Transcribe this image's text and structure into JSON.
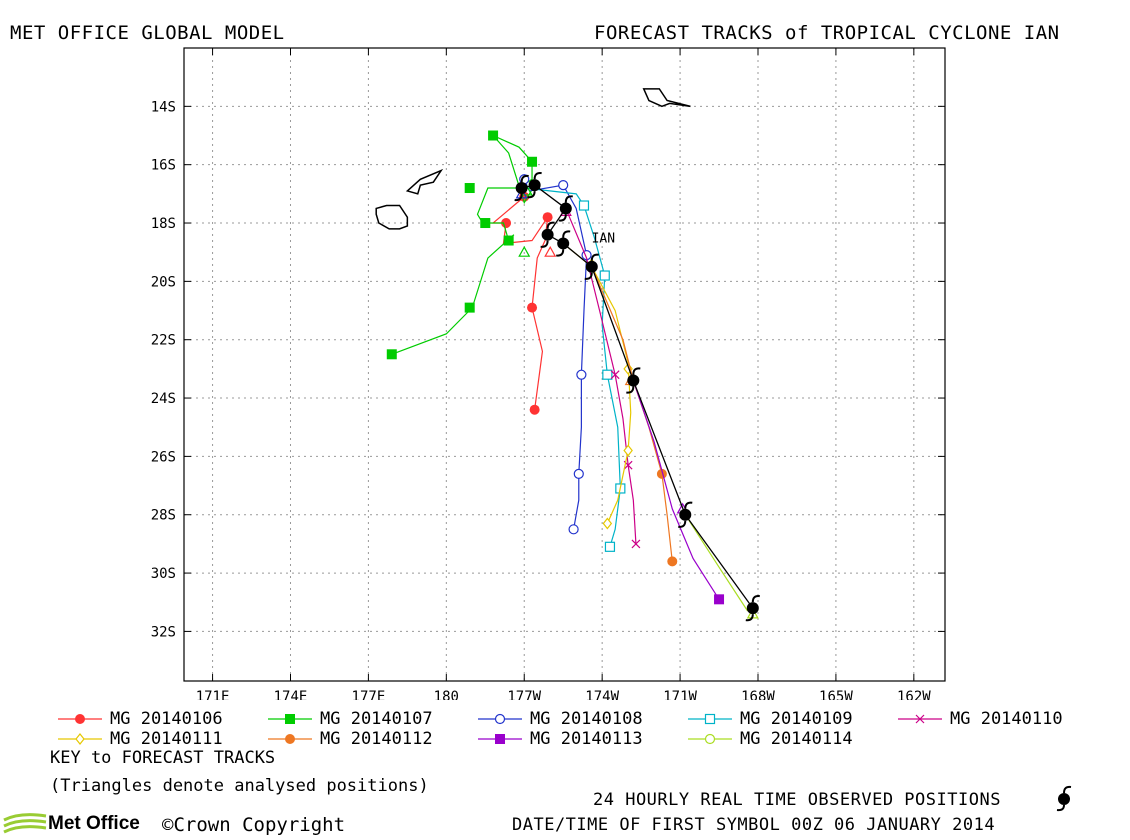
{
  "header": {
    "left_title": "MET OFFICE GLOBAL MODEL",
    "right_title": "FORECAST TRACKS of TROPICAL CYCLONE IAN"
  },
  "legend": {
    "items": [
      {
        "label": "MG 20140106",
        "color": "#ff3333",
        "marker": "filled-circle"
      },
      {
        "label": "MG 20140107",
        "color": "#00cc00",
        "marker": "filled-square"
      },
      {
        "label": "MG 20140108",
        "color": "#2233cc",
        "marker": "open-circle"
      },
      {
        "label": "MG 20140109",
        "color": "#00b3c8",
        "marker": "open-square"
      },
      {
        "label": "MG 20140110",
        "color": "#cc0088",
        "marker": "cross"
      },
      {
        "label": "MG 20140111",
        "color": "#e6c800",
        "marker": "open-diamond"
      },
      {
        "label": "MG 20140112",
        "color": "#ee7722",
        "marker": "filled-circle"
      },
      {
        "label": "MG 20140113",
        "color": "#9900cc",
        "marker": "filled-square"
      },
      {
        "label": "MG 20140114",
        "color": "#aadd22",
        "marker": "open-circle"
      }
    ],
    "key_title": "KEY to FORECAST TRACKS",
    "key_note": "(Triangles denote analysed positions)"
  },
  "footer": {
    "observed_label": "24 HOURLY REAL TIME OBSERVED POSITIONS",
    "datetime_label": "DATE/TIME OF FIRST SYMBOL 00Z 06 JANUARY 2014",
    "logo_text": "Met Office",
    "copyright": "©Crown Copyright"
  },
  "chart_data": {
    "type": "scatter",
    "title": "FORECAST TRACKS of TROPICAL CYCLONE IAN",
    "storm_label": "IAN",
    "x_ticks": [
      {
        "lon": 171,
        "label": "171E"
      },
      {
        "lon": 174,
        "label": "174E"
      },
      {
        "lon": 177,
        "label": "177E"
      },
      {
        "lon": 180,
        "label": "180"
      },
      {
        "lon": 183,
        "label": "177W"
      },
      {
        "lon": 186,
        "label": "174W"
      },
      {
        "lon": 189,
        "label": "171W"
      },
      {
        "lon": 192,
        "label": "168W"
      },
      {
        "lon": 195,
        "label": "165W"
      },
      {
        "lon": 198,
        "label": "162W"
      }
    ],
    "y_ticks": [
      {
        "lat": -14,
        "label": "14S"
      },
      {
        "lat": -16,
        "label": "16S"
      },
      {
        "lat": -18,
        "label": "18S"
      },
      {
        "lat": -20,
        "label": "20S"
      },
      {
        "lat": -22,
        "label": "22S"
      },
      {
        "lat": -24,
        "label": "24S"
      },
      {
        "lat": -26,
        "label": "26S"
      },
      {
        "lat": -28,
        "label": "28S"
      },
      {
        "lat": -30,
        "label": "30S"
      },
      {
        "lat": -32,
        "label": "32S"
      }
    ],
    "xlim": [
      169.9,
      199.2
    ],
    "ylim": [
      -33.7,
      -12.0
    ],
    "grid": true,
    "observed_track": [
      [
        182.9,
        -16.8
      ],
      [
        183.4,
        -16.7
      ],
      [
        184.6,
        -17.5
      ],
      [
        183.9,
        -18.4
      ],
      [
        184.5,
        -18.7
      ],
      [
        185.6,
        -19.5
      ],
      [
        187.2,
        -23.4
      ],
      [
        189.2,
        -28.0
      ],
      [
        191.8,
        -31.2
      ]
    ],
    "series": [
      {
        "name": "MG 20140106",
        "color": "#ff3333",
        "marker": "filled-circle",
        "track": [
          [
            182.9,
            -16.8
          ],
          [
            183.0,
            -17.1
          ],
          [
            182.2,
            -17.7
          ],
          [
            181.8,
            -18.0
          ],
          [
            182.3,
            -18.0
          ],
          [
            182.2,
            -18.7
          ],
          [
            183.3,
            -18.6
          ],
          [
            183.9,
            -17.8
          ],
          [
            183.8,
            -18.6
          ],
          [
            183.5,
            -19.2
          ],
          [
            183.3,
            -20.9
          ],
          [
            183.7,
            -22.4
          ],
          [
            183.4,
            -24.4
          ]
        ],
        "symbols": [
          [
            183.0,
            -17.1
          ],
          [
            182.3,
            -18.0
          ],
          [
            183.9,
            -17.8
          ],
          [
            183.3,
            -20.9
          ],
          [
            183.4,
            -24.4
          ]
        ]
      },
      {
        "name": "MG 20140107",
        "color": "#00cc00",
        "marker": "filled-square",
        "track": [
          [
            183.4,
            -16.7
          ],
          [
            183.0,
            -17.3
          ],
          [
            182.4,
            -15.6
          ],
          [
            181.8,
            -15.0
          ],
          [
            182.8,
            -15.4
          ],
          [
            183.3,
            -15.9
          ],
          [
            183.3,
            -16.5
          ],
          [
            182.8,
            -16.8
          ],
          [
            181.6,
            -16.8
          ],
          [
            181.2,
            -17.7
          ],
          [
            181.4,
            -18.0
          ],
          [
            182.2,
            -18.0
          ],
          [
            182.4,
            -18.6
          ],
          [
            182.6,
            -18.4
          ],
          [
            181.6,
            -19.2
          ],
          [
            181.0,
            -20.9
          ],
          [
            180.0,
            -21.8
          ],
          [
            177.9,
            -22.5
          ]
        ],
        "symbols": [
          [
            181.8,
            -15.0
          ],
          [
            183.3,
            -15.9
          ],
          [
            180.9,
            -16.8
          ],
          [
            181.5,
            -18.0
          ],
          [
            182.4,
            -18.6
          ],
          [
            180.9,
            -20.9
          ],
          [
            177.9,
            -22.5
          ]
        ]
      },
      {
        "name": "MG 20140108",
        "color": "#2233cc",
        "marker": "open-circle",
        "track": [
          [
            183.0,
            -16.5
          ],
          [
            183.2,
            -16.9
          ],
          [
            184.5,
            -16.7
          ],
          [
            185.0,
            -17.5
          ],
          [
            185.4,
            -19.1
          ],
          [
            185.3,
            -21.0
          ],
          [
            185.2,
            -23.2
          ],
          [
            185.2,
            -25.0
          ],
          [
            185.1,
            -26.6
          ],
          [
            185.1,
            -27.5
          ],
          [
            184.9,
            -28.5
          ]
        ],
        "symbols": [
          [
            183.0,
            -16.5
          ],
          [
            184.5,
            -16.7
          ],
          [
            185.4,
            -19.1
          ],
          [
            185.2,
            -23.2
          ],
          [
            185.1,
            -26.6
          ],
          [
            184.9,
            -28.5
          ]
        ]
      },
      {
        "name": "MG 20140109",
        "color": "#00b3c8",
        "marker": "open-square",
        "track": [
          [
            183.0,
            -16.8
          ],
          [
            185.0,
            -17.0
          ],
          [
            185.3,
            -17.4
          ],
          [
            185.7,
            -18.5
          ],
          [
            186.1,
            -19.8
          ],
          [
            186.0,
            -21.5
          ],
          [
            186.2,
            -23.2
          ],
          [
            186.6,
            -25.0
          ],
          [
            186.7,
            -27.1
          ],
          [
            186.5,
            -28.5
          ],
          [
            186.3,
            -29.1
          ]
        ],
        "symbols": [
          [
            185.3,
            -17.4
          ],
          [
            186.1,
            -19.8
          ],
          [
            186.2,
            -23.2
          ],
          [
            186.7,
            -27.1
          ],
          [
            186.3,
            -29.1
          ]
        ]
      },
      {
        "name": "MG 20140110",
        "color": "#cc0088",
        "marker": "cross",
        "track": [
          [
            184.6,
            -17.5
          ],
          [
            185.4,
            -19.2
          ],
          [
            185.9,
            -21.0
          ],
          [
            186.5,
            -23.2
          ],
          [
            186.8,
            -24.7
          ],
          [
            187.0,
            -26.3
          ],
          [
            187.2,
            -27.5
          ],
          [
            187.3,
            -29.0
          ]
        ],
        "symbols": [
          [
            186.5,
            -23.2
          ],
          [
            187.0,
            -26.3
          ],
          [
            187.3,
            -29.0
          ]
        ]
      },
      {
        "name": "MG 20140111",
        "color": "#e6c800",
        "marker": "open-diamond",
        "track": [
          [
            184.5,
            -18.7
          ],
          [
            185.6,
            -19.5
          ],
          [
            186.5,
            -21.0
          ],
          [
            187.0,
            -22.8
          ],
          [
            187.1,
            -24.5
          ],
          [
            187.0,
            -25.8
          ],
          [
            186.6,
            -27.5
          ],
          [
            186.2,
            -28.3
          ]
        ],
        "symbols": [
          [
            187.0,
            -23.0
          ],
          [
            187.0,
            -25.8
          ],
          [
            186.2,
            -28.3
          ]
        ]
      },
      {
        "name": "MG 20140112",
        "color": "#ee7722",
        "marker": "filled-circle",
        "track": [
          [
            185.6,
            -19.5
          ],
          [
            186.8,
            -22.0
          ],
          [
            187.2,
            -23.4
          ],
          [
            187.8,
            -25.0
          ],
          [
            188.3,
            -26.6
          ],
          [
            188.5,
            -28.0
          ],
          [
            188.7,
            -29.6
          ]
        ],
        "symbols": [
          [
            188.3,
            -26.6
          ],
          [
            188.7,
            -29.6
          ]
        ]
      },
      {
        "name": "MG 20140113",
        "color": "#9900cc",
        "marker": "filled-square",
        "track": [
          [
            187.2,
            -23.4
          ],
          [
            188.0,
            -25.5
          ],
          [
            188.7,
            -27.8
          ],
          [
            189.5,
            -29.5
          ],
          [
            190.5,
            -30.9
          ]
        ],
        "symbols": [
          [
            190.5,
            -30.9
          ]
        ]
      },
      {
        "name": "MG 20140114",
        "color": "#aadd22",
        "marker": "open-circle",
        "track": [
          [
            189.2,
            -28.0
          ],
          [
            190.5,
            -29.8
          ],
          [
            191.6,
            -31.3
          ]
        ],
        "symbols": []
      }
    ],
    "analysed_positions": [
      {
        "color": "#00cc00",
        "pos": [
          183.1,
          -16.9
        ]
      },
      {
        "color": "#00cc00",
        "pos": [
          183.0,
          -19.0
        ]
      },
      {
        "color": "#2233cc",
        "pos": [
          182.9,
          -17.0
        ]
      },
      {
        "color": "#ff3333",
        "pos": [
          184.0,
          -19.0
        ]
      },
      {
        "color": "#cc0088",
        "pos": [
          184.6,
          -17.6
        ]
      },
      {
        "color": "#e6c800",
        "pos": [
          185.6,
          -19.4
        ]
      },
      {
        "color": "#ee7722",
        "pos": [
          187.1,
          -23.4
        ]
      },
      {
        "color": "#9900cc",
        "pos": [
          189.1,
          -27.8
        ]
      },
      {
        "color": "#aadd22",
        "pos": [
          191.8,
          -31.4
        ]
      }
    ],
    "islands": [
      {
        "name": "fiji-viti-levu",
        "outline": [
          [
            177.3,
            -17.5
          ],
          [
            177.7,
            -17.4
          ],
          [
            178.2,
            -17.4
          ],
          [
            178.5,
            -17.8
          ],
          [
            178.5,
            -18.1
          ],
          [
            178.2,
            -18.2
          ],
          [
            177.8,
            -18.2
          ],
          [
            177.4,
            -18.0
          ],
          [
            177.3,
            -17.7
          ],
          [
            177.3,
            -17.5
          ]
        ]
      },
      {
        "name": "fiji-vanua-levu",
        "outline": [
          [
            178.5,
            -16.9
          ],
          [
            179.0,
            -16.5
          ],
          [
            179.8,
            -16.2
          ],
          [
            179.5,
            -16.6
          ],
          [
            179.0,
            -16.7
          ],
          [
            178.9,
            -17.0
          ],
          [
            178.5,
            -16.9
          ]
        ]
      },
      {
        "name": "samoa",
        "outline": [
          [
            187.6,
            -13.4
          ],
          [
            188.2,
            -13.4
          ],
          [
            188.5,
            -13.8
          ],
          [
            189.4,
            -14.0
          ],
          [
            188.6,
            -13.9
          ],
          [
            188.3,
            -14.0
          ],
          [
            187.8,
            -13.8
          ],
          [
            187.6,
            -13.4
          ]
        ]
      }
    ]
  }
}
